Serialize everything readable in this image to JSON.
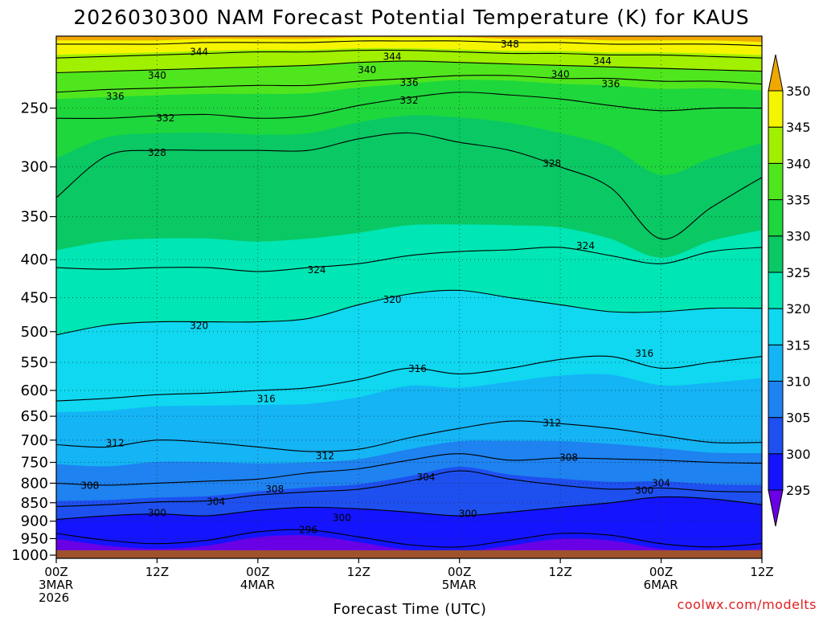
{
  "chart_data": {
    "type": "heatmap",
    "title": "2026030300 NAM Forecast Potential Temperature (K) for KAUS",
    "xlabel": "Forecast Time (UTC)",
    "ylabel": "",
    "credit": "coolwx.com/modelts",
    "y_scale": "log-pressure (inverted)",
    "ylim": [
      1010,
      200
    ],
    "y_ticks": [
      250,
      300,
      350,
      400,
      450,
      500,
      550,
      600,
      650,
      700,
      750,
      800,
      850,
      900,
      950,
      1000
    ],
    "xlim_hours": [
      0,
      84
    ],
    "x_ticks": [
      {
        "hour": 0,
        "lines": [
          "00Z",
          "3MAR",
          "2026"
        ]
      },
      {
        "hour": 12,
        "lines": [
          "12Z"
        ]
      },
      {
        "hour": 24,
        "lines": [
          "00Z",
          "4MAR"
        ]
      },
      {
        "hour": 36,
        "lines": [
          "12Z"
        ]
      },
      {
        "hour": 48,
        "lines": [
          "00Z",
          "5MAR"
        ]
      },
      {
        "hour": 60,
        "lines": [
          "12Z"
        ]
      },
      {
        "hour": 72,
        "lines": [
          "00Z",
          "6MAR"
        ]
      },
      {
        "hour": 84,
        "lines": [
          "12Z"
        ]
      }
    ],
    "grid": true,
    "ground_pressure": 985,
    "colorbar": {
      "levels": [
        295,
        300,
        305,
        310,
        315,
        320,
        325,
        330,
        335,
        340,
        345,
        350
      ],
      "labels": [
        "295",
        "300",
        "305",
        "310",
        "315",
        "320",
        "325",
        "330",
        "335",
        "340",
        "345",
        "350"
      ],
      "colors": [
        "#6a00e6",
        "#1414ff",
        "#1e50f0",
        "#1e82f0",
        "#14b4f5",
        "#0fd8f0",
        "#00e6b4",
        "#0ac864",
        "#1ed73c",
        "#50e61e",
        "#a0f000",
        "#f5f500",
        "#f0a800"
      ]
    },
    "x_hours": [
      0,
      6,
      12,
      18,
      24,
      30,
      36,
      42,
      48,
      54,
      60,
      66,
      72,
      78,
      84
    ],
    "isentropes": [
      {
        "theta": 296,
        "label": "296",
        "pressure": [
          935,
          955,
          965,
          955,
          930,
          925,
          945,
          968,
          975,
          955,
          935,
          940,
          965,
          975,
          965
        ]
      },
      {
        "theta": 300,
        "label": "300",
        "pressure": [
          895,
          885,
          880,
          885,
          870,
          862,
          866,
          875,
          885,
          875,
          862,
          850,
          835,
          840,
          855
        ]
      },
      {
        "theta": 304,
        "label": "304",
        "pressure": [
          860,
          855,
          848,
          845,
          830,
          822,
          815,
          795,
          770,
          790,
          805,
          815,
          812,
          820,
          822
        ]
      },
      {
        "theta": 308,
        "label": "308",
        "pressure": [
          800,
          805,
          800,
          795,
          790,
          775,
          765,
          745,
          730,
          745,
          740,
          742,
          745,
          750,
          752
        ]
      },
      {
        "theta": 312,
        "label": "312",
        "pressure": [
          710,
          715,
          700,
          705,
          715,
          725,
          720,
          695,
          675,
          660,
          665,
          675,
          690,
          705,
          705
        ]
      },
      {
        "theta": 316,
        "label": "316",
        "pressure": [
          620,
          615,
          608,
          605,
          600,
          595,
          580,
          560,
          570,
          560,
          545,
          540,
          560,
          550,
          540
        ]
      },
      {
        "theta": 320,
        "label": "320",
        "pressure": [
          505,
          490,
          485,
          485,
          485,
          480,
          460,
          445,
          440,
          450,
          460,
          470,
          470,
          465,
          465
        ]
      },
      {
        "theta": 324,
        "label": "324",
        "pressure": [
          410,
          412,
          410,
          410,
          415,
          410,
          405,
          395,
          390,
          388,
          385,
          395,
          405,
          390,
          385
        ]
      },
      {
        "theta": 328,
        "label": "328",
        "pressure": [
          330,
          290,
          285,
          285,
          285,
          285,
          275,
          270,
          278,
          285,
          300,
          320,
          375,
          340,
          310
        ]
      },
      {
        "theta": 332,
        "label": "332",
        "pressure": [
          258,
          258,
          256,
          255,
          258,
          256,
          248,
          242,
          238,
          240,
          243,
          248,
          252,
          250,
          250
        ]
      },
      {
        "theta": 336,
        "label": "336",
        "pressure": [
          238,
          236,
          235,
          234,
          233,
          233,
          230,
          228,
          226,
          226,
          228,
          228,
          230,
          230,
          232
        ]
      },
      {
        "theta": 340,
        "label": "340",
        "pressure": [
          224,
          223,
          222,
          221,
          220,
          219,
          217,
          216,
          217,
          218,
          219,
          220,
          221,
          222,
          223
        ]
      },
      {
        "theta": 344,
        "label": "344",
        "pressure": [
          214,
          213,
          212,
          211,
          210,
          210,
          209,
          209,
          210,
          211,
          211,
          212,
          212,
          213,
          214
        ]
      },
      {
        "theta": 348,
        "label": "348",
        "pressure": [
          205,
          205,
          205,
          204,
          204,
          204,
          203,
          203,
          203,
          204,
          204,
          205,
          205,
          205,
          206
        ]
      }
    ],
    "contour_labels": [
      {
        "theta": "344",
        "hour": 17,
        "pressure": 210
      },
      {
        "theta": "348",
        "hour": 54,
        "pressure": 205
      },
      {
        "theta": "344",
        "hour": 40,
        "pressure": 213
      },
      {
        "theta": "344",
        "hour": 65,
        "pressure": 216
      },
      {
        "theta": "340",
        "hour": 12,
        "pressure": 226
      },
      {
        "theta": "340",
        "hour": 37,
        "pressure": 222
      },
      {
        "theta": "340",
        "hour": 60,
        "pressure": 225
      },
      {
        "theta": "336",
        "hour": 7,
        "pressure": 241
      },
      {
        "theta": "336",
        "hour": 42,
        "pressure": 231
      },
      {
        "theta": "336",
        "hour": 66,
        "pressure": 232
      },
      {
        "theta": "332",
        "hour": 13,
        "pressure": 258
      },
      {
        "theta": "332",
        "hour": 42,
        "pressure": 244
      },
      {
        "theta": "328",
        "hour": 12,
        "pressure": 287
      },
      {
        "theta": "328",
        "hour": 59,
        "pressure": 297
      },
      {
        "theta": "324",
        "hour": 63,
        "pressure": 383
      },
      {
        "theta": "324",
        "hour": 31,
        "pressure": 413
      },
      {
        "theta": "320",
        "hour": 40,
        "pressure": 453
      },
      {
        "theta": "320",
        "hour": 17,
        "pressure": 491
      },
      {
        "theta": "316",
        "hour": 43,
        "pressure": 561
      },
      {
        "theta": "316",
        "hour": 70,
        "pressure": 535
      },
      {
        "theta": "316",
        "hour": 25,
        "pressure": 616
      },
      {
        "theta": "312",
        "hour": 59,
        "pressure": 664
      },
      {
        "theta": "312",
        "hour": 7,
        "pressure": 706
      },
      {
        "theta": "312",
        "hour": 32,
        "pressure": 735
      },
      {
        "theta": "308",
        "hour": 61,
        "pressure": 739
      },
      {
        "theta": "308",
        "hour": 4,
        "pressure": 806
      },
      {
        "theta": "308",
        "hour": 26,
        "pressure": 815
      },
      {
        "theta": "304",
        "hour": 44,
        "pressure": 785
      },
      {
        "theta": "304",
        "hour": 72,
        "pressure": 800
      },
      {
        "theta": "304",
        "hour": 19,
        "pressure": 847
      },
      {
        "theta": "300",
        "hour": 12,
        "pressure": 877
      },
      {
        "theta": "300",
        "hour": 34,
        "pressure": 891
      },
      {
        "theta": "300",
        "hour": 49,
        "pressure": 880
      },
      {
        "theta": "300",
        "hour": 70,
        "pressure": 818
      },
      {
        "theta": "296",
        "hour": 30,
        "pressure": 925
      }
    ]
  }
}
